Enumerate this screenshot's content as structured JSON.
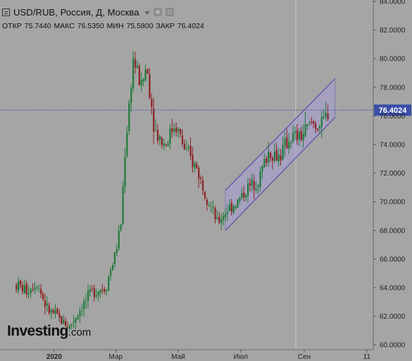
{
  "header": {
    "title": "USD/RUB, Россия, Д, Москва",
    "open_label": "ОТКР",
    "open_value": "75.7440",
    "high_label": "МАКС",
    "high_value": "76.5350",
    "low_label": "МИН",
    "low_value": "75.5800",
    "close_label": "ЗАКР",
    "close_value": "76.4024",
    "icons": [
      "symbol-list-icon",
      "chevron-down-icon",
      "eye-icon",
      "gear-icon"
    ]
  },
  "logo": {
    "main": "Investing",
    "suffix": ".com"
  },
  "colors": {
    "background": "#a5a5a5",
    "up": "#1f7a3a",
    "down": "#8c2222",
    "price_line": "#2d3a9a",
    "price_badge": "#3b4ea8",
    "channel_fill": "#a79fd3",
    "channel_line": "#5a4ea6"
  },
  "chart_data": {
    "type": "candlestick",
    "y_ticks": [
      "60.0000",
      "62.0000",
      "64.0000",
      "66.0000",
      "68.0000",
      "70.0000",
      "72.0000",
      "74.0000",
      "76.0000",
      "78.0000",
      "80.0000",
      "82.0000",
      "84.0000"
    ],
    "ylim": [
      60,
      84
    ],
    "x_ticks": [
      "2020",
      "Мар",
      "Май",
      "Июл",
      "Сен",
      "11"
    ],
    "last_price": "76.4024",
    "series_path": [
      [
        "2019-11-25",
        64.2
      ],
      [
        "2019-12-05",
        63.8
      ],
      [
        "2019-12-15",
        64.4
      ],
      [
        "2019-12-25",
        62.5
      ],
      [
        "2020-01-06",
        61.8
      ],
      [
        "2020-01-16",
        61.3
      ],
      [
        "2020-01-28",
        62.7
      ],
      [
        "2020-02-08",
        63.8
      ],
      [
        "2020-02-20",
        64.0
      ],
      [
        "2020-03-01",
        66.5
      ],
      [
        "2020-03-06",
        68.5
      ],
      [
        "2020-03-10",
        73.5
      ],
      [
        "2020-03-18",
        80.0
      ],
      [
        "2020-03-26",
        78.0
      ],
      [
        "2020-03-31",
        79.5
      ],
      [
        "2020-04-08",
        75.0
      ],
      [
        "2020-04-18",
        74.0
      ],
      [
        "2020-04-28",
        75.5
      ],
      [
        "2020-05-08",
        73.5
      ],
      [
        "2020-05-18",
        72.5
      ],
      [
        "2020-05-28",
        70.5
      ],
      [
        "2020-06-08",
        68.5
      ],
      [
        "2020-06-18",
        69.5
      ],
      [
        "2020-06-28",
        70.0
      ],
      [
        "2020-07-08",
        71.0
      ],
      [
        "2020-07-18",
        71.5
      ],
      [
        "2020-07-28",
        73.5
      ],
      [
        "2020-08-08",
        73.2
      ],
      [
        "2020-08-18",
        74.5
      ],
      [
        "2020-08-28",
        74.5
      ],
      [
        "2020-09-08",
        75.5
      ],
      [
        "2020-09-18",
        75.3
      ],
      [
        "2020-09-25",
        76.4
      ]
    ],
    "channel": {
      "start_date": "2020-06-16",
      "end_date": "2020-10-01",
      "lower_start": 68.0,
      "lower_end": 75.9,
      "upper_start": 70.8,
      "upper_end": 78.6
    }
  }
}
